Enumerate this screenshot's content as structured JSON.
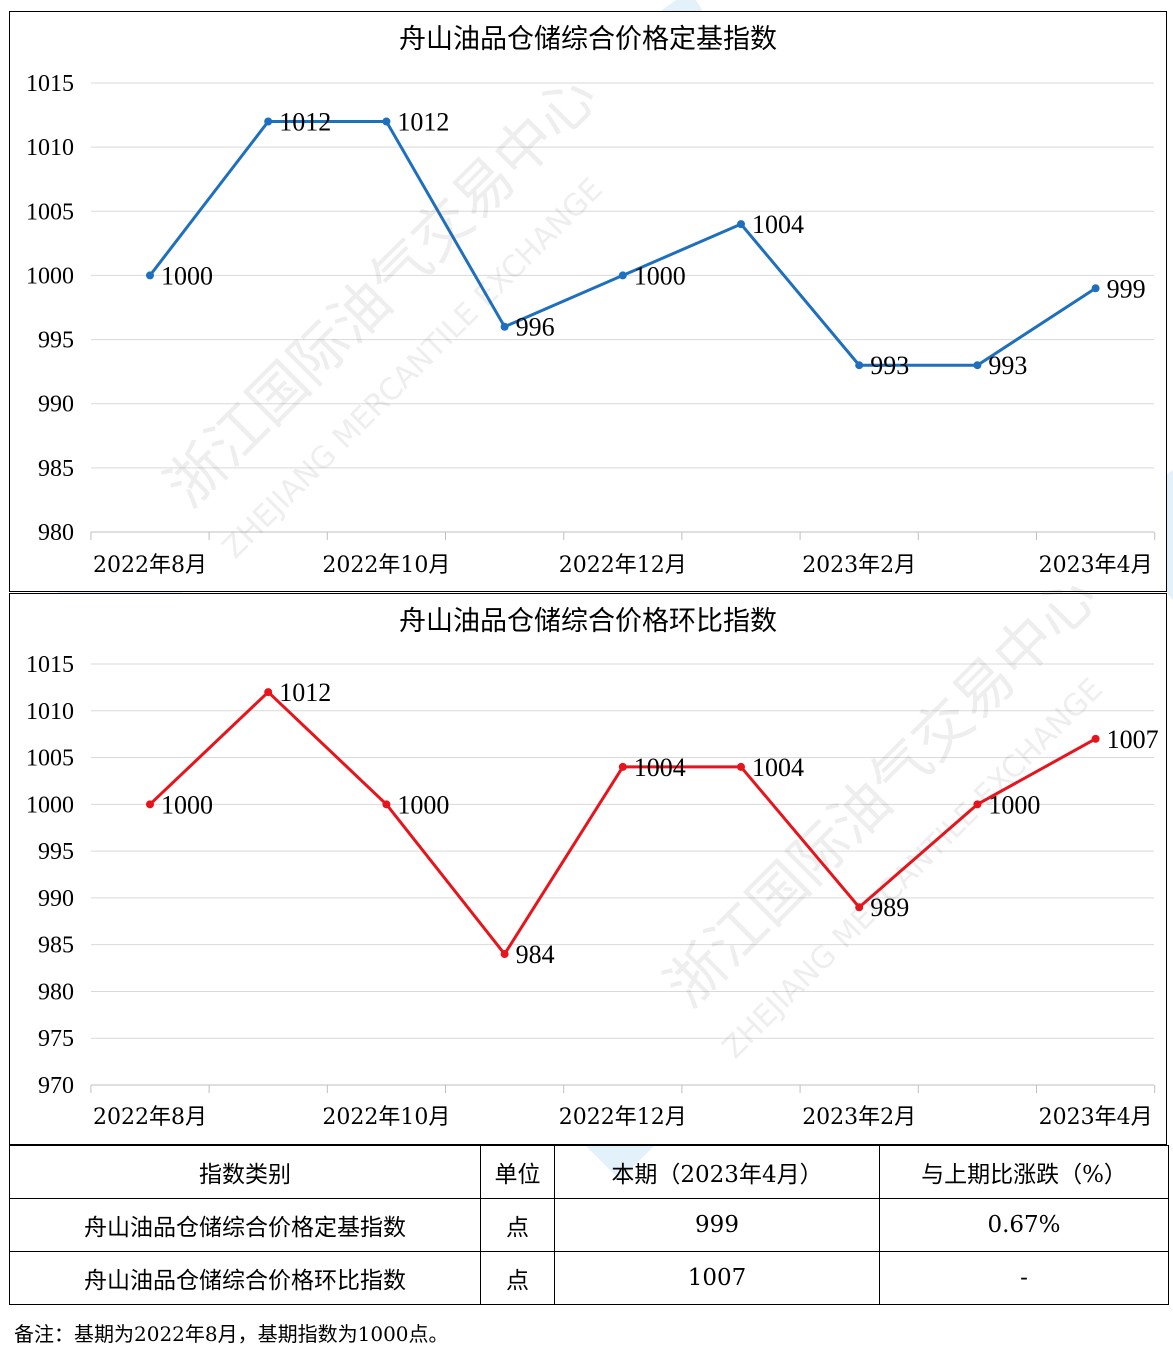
{
  "chart_data": [
    {
      "type": "line",
      "title": "舟山油品仓储综合价格定基指数",
      "x": [
        "2022年8月",
        "2022年9月",
        "2022年10月",
        "2022年11月",
        "2022年12月",
        "2023年1月",
        "2023年2月",
        "2023年3月",
        "2023年4月"
      ],
      "x_tick_labels": [
        "2022年8月",
        "2022年10月",
        "2022年12月",
        "2023年2月",
        "2023年4月"
      ],
      "series": [
        {
          "values": [
            1000,
            1012,
            1012,
            996,
            1000,
            1004,
            993,
            993,
            999
          ],
          "color": "#1f6fbf"
        }
      ],
      "ylim": [
        980,
        1015
      ],
      "yticks": [
        980,
        985,
        990,
        995,
        1000,
        1005,
        1010,
        1015
      ],
      "xlabel": "",
      "ylabel": "",
      "grid": true
    },
    {
      "type": "line",
      "title": "舟山油品仓储综合价格环比指数",
      "x": [
        "2022年8月",
        "2022年9月",
        "2022年10月",
        "2022年11月",
        "2022年12月",
        "2023年1月",
        "2023年2月",
        "2023年3月",
        "2023年4月"
      ],
      "x_tick_labels": [
        "2022年8月",
        "2022年10月",
        "2022年12月",
        "2023年2月",
        "2023年4月"
      ],
      "series": [
        {
          "values": [
            1000,
            1012,
            1000,
            984,
            1004,
            1004,
            989,
            1000,
            1007
          ],
          "color": "#e8141b"
        }
      ],
      "ylim": [
        970,
        1015
      ],
      "yticks": [
        970,
        975,
        980,
        985,
        990,
        995,
        1000,
        1005,
        1010,
        1015
      ],
      "xlabel": "",
      "ylabel": "",
      "grid": true
    }
  ],
  "table": {
    "headers": [
      "指数类别",
      "单位",
      "本期（2023年4月）",
      "与上期比涨跌（%）"
    ],
    "rows": [
      [
        "舟山油品仓储综合价格定基指数",
        "点",
        "999",
        "0.67%"
      ],
      [
        "舟山油品仓储综合价格环比指数",
        "点",
        "1007",
        "-"
      ]
    ]
  },
  "note": "备注：基期为2022年8月，基期指数为1000点。",
  "watermark": {
    "cn": "浙江国际油气交易中心",
    "en": "ZHEJIANG MERCANTILE EXCHANGE"
  }
}
